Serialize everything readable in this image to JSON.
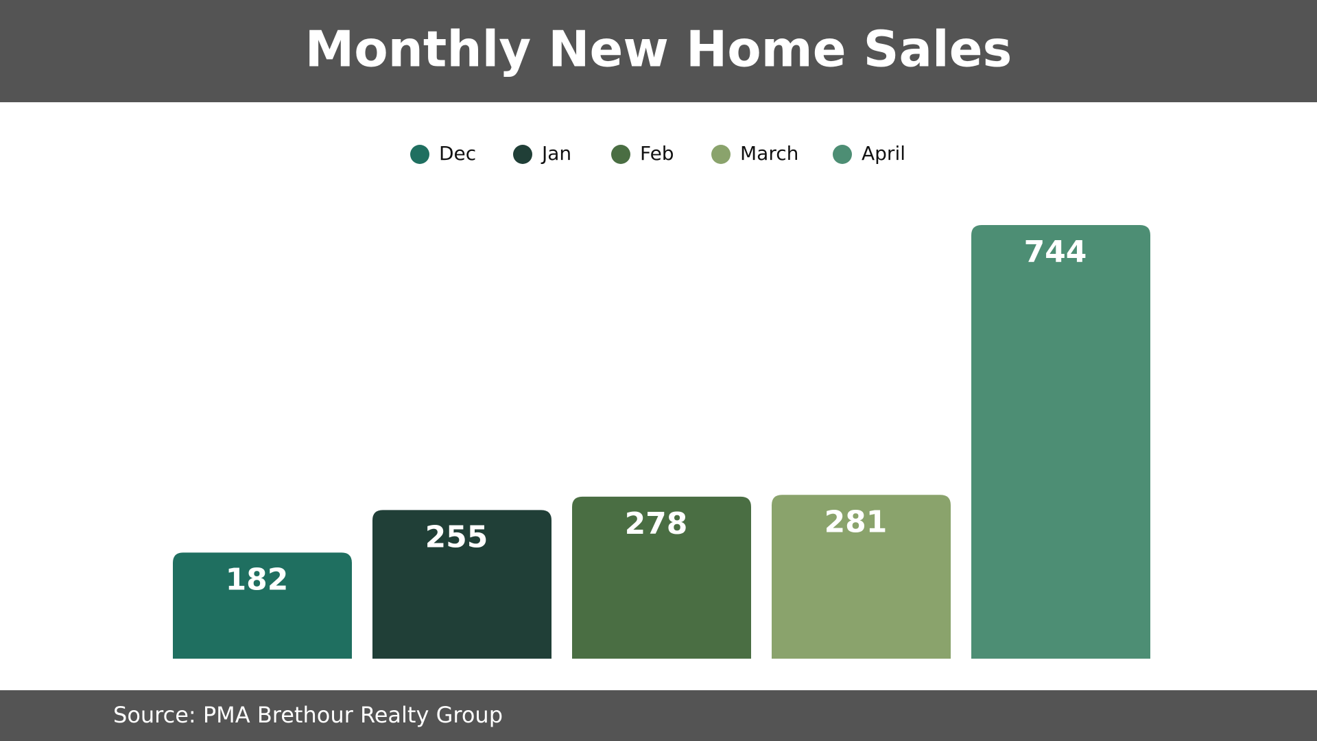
{
  "chart_data": {
    "type": "bar",
    "title": "Monthly New Home Sales",
    "series": [
      {
        "name": "Dec",
        "color": "#1f6f60",
        "values": [
          182
        ]
      },
      {
        "name": "Jan",
        "color": "#203f37",
        "values": [
          255
        ]
      },
      {
        "name": "Feb",
        "color": "#4a6e43",
        "values": [
          278
        ]
      },
      {
        "name": "March",
        "color": "#8aa36c",
        "values": [
          281
        ]
      },
      {
        "name": "April",
        "color": "#4d8e74",
        "values": [
          744
        ]
      }
    ],
    "source": "Source: PMA Brethour Realty Group"
  }
}
